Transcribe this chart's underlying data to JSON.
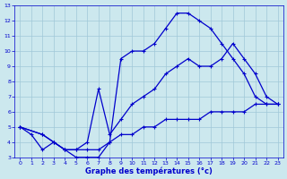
{
  "xlabel": "Graphe des températures (°c)",
  "background_color": "#cce8ee",
  "grid_color": "#a0c8d8",
  "line_color": "#0000cc",
  "xlim": [
    -0.5,
    23.5
  ],
  "ylim": [
    3,
    13
  ],
  "xticks": [
    0,
    1,
    2,
    3,
    4,
    5,
    6,
    7,
    8,
    9,
    10,
    11,
    12,
    13,
    14,
    15,
    16,
    17,
    18,
    19,
    20,
    21,
    22,
    23
  ],
  "yticks": [
    3,
    4,
    5,
    6,
    7,
    8,
    9,
    10,
    11,
    12,
    13
  ],
  "line1_x": [
    0,
    1,
    2,
    3,
    4,
    5,
    6,
    7,
    8,
    9,
    10,
    11,
    12,
    13,
    14,
    15,
    16,
    17,
    18,
    19,
    20,
    21,
    22,
    23
  ],
  "line1_y": [
    5.0,
    4.5,
    3.5,
    4.0,
    3.5,
    3.0,
    3.0,
    3.0,
    4.0,
    9.5,
    10.0,
    10.0,
    10.5,
    11.5,
    12.5,
    12.5,
    12.0,
    11.5,
    10.5,
    9.5,
    8.5,
    7.0,
    6.5,
    6.5
  ],
  "line2_x": [
    0,
    2,
    3,
    4,
    5,
    6,
    7,
    8,
    9,
    10,
    11,
    12,
    13,
    14,
    15,
    16,
    17,
    18,
    19,
    20,
    21,
    22,
    23
  ],
  "line2_y": [
    5.0,
    4.5,
    4.0,
    3.5,
    3.5,
    4.0,
    7.5,
    4.5,
    5.5,
    6.5,
    7.0,
    7.5,
    8.5,
    9.0,
    9.5,
    9.0,
    9.0,
    9.5,
    10.5,
    9.5,
    8.5,
    7.0,
    6.5
  ],
  "line3_x": [
    0,
    2,
    3,
    4,
    5,
    6,
    7,
    8,
    9,
    10,
    11,
    12,
    13,
    14,
    15,
    16,
    17,
    18,
    19,
    20,
    21,
    22,
    23
  ],
  "line3_y": [
    5.0,
    4.5,
    4.0,
    3.5,
    3.5,
    3.5,
    3.5,
    4.0,
    4.5,
    4.5,
    5.0,
    5.0,
    5.5,
    5.5,
    5.5,
    5.5,
    6.0,
    6.0,
    6.0,
    6.0,
    6.5,
    6.5,
    6.5
  ],
  "marker_size": 2.5,
  "line_width": 0.9
}
